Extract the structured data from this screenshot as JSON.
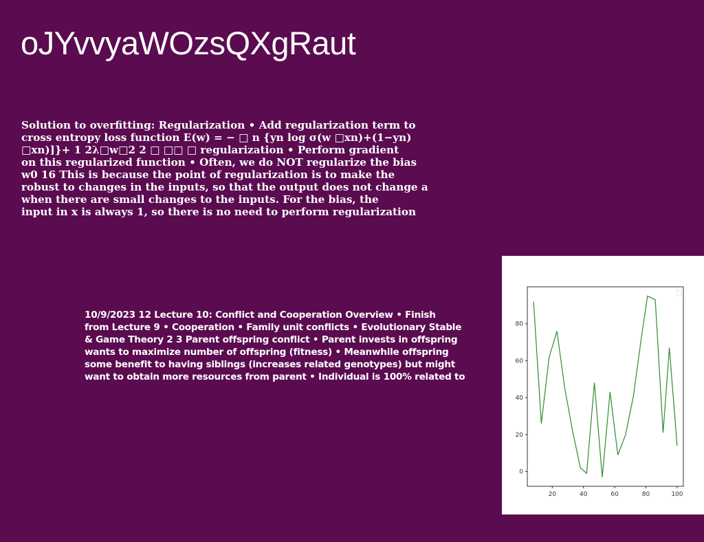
{
  "slide": {
    "title": "oJYvvyaWOzsQXgRaut",
    "background_color": "#5b0b50",
    "text_color": "#ffffff"
  },
  "text_block_1": {
    "lines": [
      "Solution to overfitting: Regularization • Add regularization term to",
      "cross entropy loss function E(w) = − □ n {yn log σ(w □xn)+(1−yn)",
      "□xn)]}+ 1 2λ□w□2 2 □ □□ □ regularization • Perform gradient",
      "on this regularized function • Often, we do NOT regularize the bias",
      "w0 16 This is because the point of regularization is to make the",
      "robust to changes in the inputs, so that the output does not change a",
      "when there are small changes to the inputs. For the bias, the",
      "input in x is always 1, so there is no need to perform regularization"
    ]
  },
  "text_block_2": {
    "lines": [
      "10/9/2023 12 Lecture 10: Conflict and Cooperation Overview • Finish",
      "from Lecture 9 • Cooperation • Family unit conflicts • Evolutionary Stable",
      "& Game Theory 2 3 Parent offspring conflict • Parent invests in offspring",
      "wants to maximize number of offspring (fitness) • Meanwhile offspring",
      "some benefit to having siblings (increases related genotypes) but might",
      "want to obtain more resources from parent • Individual is 100% related to"
    ]
  },
  "chart_data": {
    "type": "line",
    "x": [
      8,
      13,
      18,
      23,
      28,
      33,
      38,
      42,
      47,
      52,
      57,
      62,
      67,
      72,
      77,
      81,
      86,
      91,
      95,
      100
    ],
    "series": [
      {
        "values": [
          92,
          26,
          62,
          76,
          45,
          22,
          2,
          -1,
          48,
          -3,
          43,
          9,
          20,
          41,
          72,
          95,
          93,
          21,
          67,
          14
        ],
        "color": "#2e8b2e"
      }
    ],
    "x_ticks": [
      20,
      40,
      60,
      80,
      100
    ],
    "y_ticks": [
      0,
      20,
      40,
      60,
      80
    ],
    "xlim": [
      4,
      104
    ],
    "ylim": [
      -8,
      100
    ],
    "grid": false,
    "legend": "none",
    "title": "",
    "xlabel": "",
    "ylabel": ""
  }
}
